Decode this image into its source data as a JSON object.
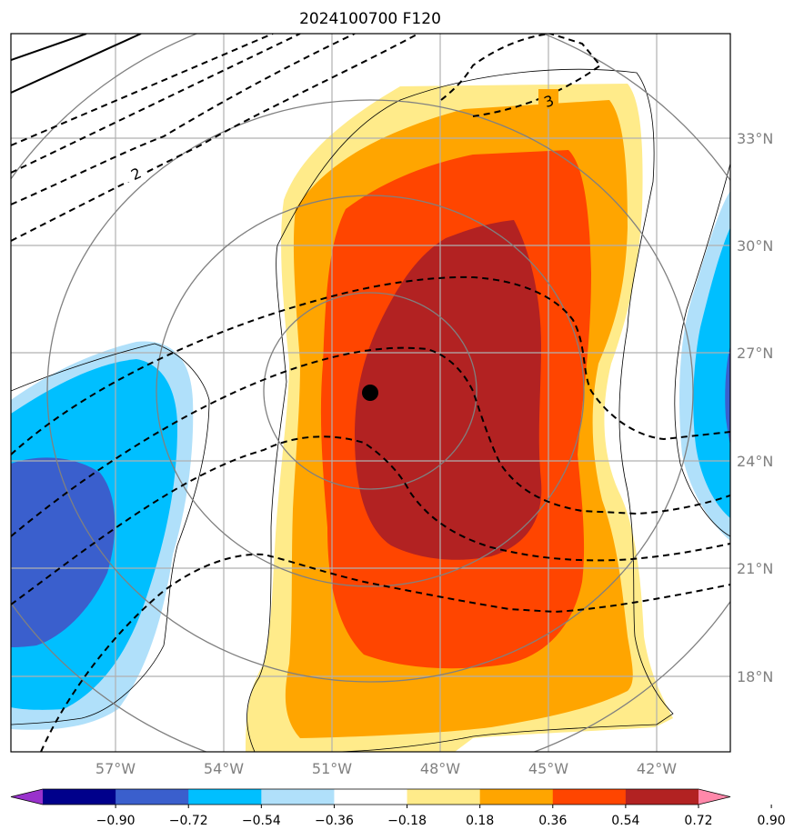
{
  "title": "2024100700 F120",
  "map": {
    "lon_labels": [
      "57°W",
      "54°W",
      "51°W",
      "48°W",
      "45°W",
      "42°W"
    ],
    "lat_labels": [
      "33°N",
      "30°N",
      "27°N",
      "24°N",
      "21°N",
      "18°N"
    ],
    "contour_labels": [
      "2",
      "3"
    ],
    "marker": "storm-center-dot"
  },
  "colorbar": {
    "ticks": [
      "−0.90",
      "−0.72",
      "−0.54",
      "−0.36",
      "−0.18",
      "0.18",
      "0.36",
      "0.54",
      "0.72",
      "0.90"
    ],
    "colors": [
      "#9932cc",
      "#00008b",
      "#3a5fcd",
      "#00bfff",
      "#b0e0fa",
      "#ffffff",
      "#ffeb8a",
      "#ffa500",
      "#ff4500",
      "#b22222",
      "#ff88aa"
    ]
  },
  "colors": {
    "grid": "#b0b0b0",
    "range_rings": "#808080",
    "contours": "#000000"
  }
}
